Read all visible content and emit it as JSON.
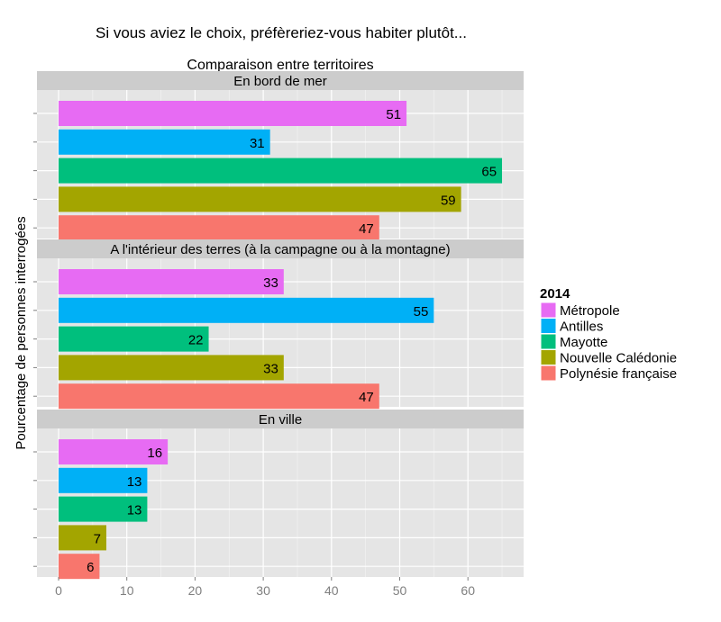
{
  "chart_data": {
    "type": "bar",
    "orientation": "horizontal",
    "title": "Si vous aviez le choix, préfèreriez-vous habiter plutôt...",
    "subtitle": "Comparaison entre territoires",
    "xlabel": "",
    "ylabel": "Pourcentage de personnes interrogées",
    "xlim": [
      0,
      68
    ],
    "x_ticks": [
      0,
      10,
      20,
      30,
      40,
      50,
      60
    ],
    "grid": true,
    "legend": {
      "title": "2014",
      "position": "right",
      "entries": [
        {
          "name": "Métropole",
          "color": "#E76BF3"
        },
        {
          "name": "Antilles",
          "color": "#00B0F6"
        },
        {
          "name": "Mayotte",
          "color": "#00BF7D"
        },
        {
          "name": "Nouvelle Calédonie",
          "color": "#A3A500"
        },
        {
          "name": "Polynésie française",
          "color": "#F8766D"
        }
      ]
    },
    "panels": [
      {
        "label": "En bord de mer",
        "values": [
          51,
          31,
          65,
          59,
          47
        ]
      },
      {
        "label": "A l'intérieur des terres (à la campagne ou à la montagne)",
        "values": [
          33,
          55,
          22,
          33,
          47
        ]
      },
      {
        "label": "En ville",
        "values": [
          16,
          13,
          13,
          7,
          6
        ]
      }
    ]
  }
}
